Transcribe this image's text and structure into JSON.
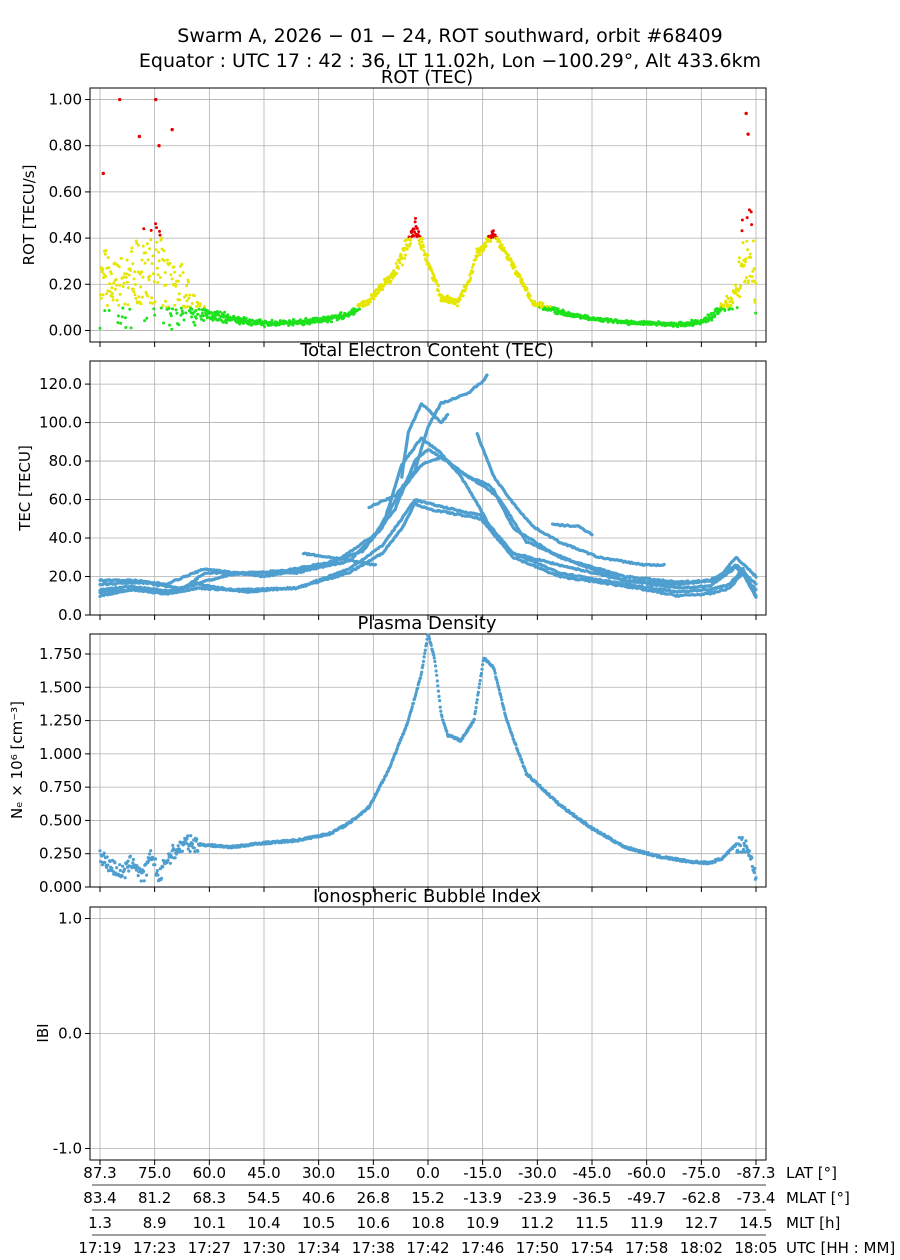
{
  "figure": {
    "title_line1": "Swarm A,  2026 − 01 − 24,  ROT southward,  orbit #68409",
    "title_line2": "Equator :  UTC 17 : 42 : 36,  LT 11.02h,  Lon  −100.29°,  Alt 433.6km"
  },
  "chart_data": [
    {
      "id": "rot",
      "type": "scatter",
      "title": "ROT (TEC)",
      "ylabel": "ROT [TECU/s]",
      "ylim": [
        -0.05,
        1.05
      ],
      "yticks": [
        0.0,
        0.2,
        0.4,
        0.6,
        0.8,
        1.0
      ],
      "ytick_labels": [
        "0.00",
        "0.20",
        "0.40",
        "0.60",
        "0.80",
        "1.00"
      ],
      "color_thresholds": {
        "green_below": 0.1,
        "yellow_below": 0.4,
        "red_above": 0.4
      },
      "colors": {
        "low": "#1de21d",
        "mid": "#e6e600",
        "high": "#e60000"
      },
      "envelope": {
        "t": [
          0.0,
          0.02,
          0.04,
          0.06,
          0.08,
          0.1,
          0.12,
          0.15,
          0.2,
          0.25,
          0.3,
          0.35,
          0.38,
          0.41,
          0.45,
          0.48,
          0.5,
          0.52,
          0.545,
          0.56,
          0.575,
          0.6,
          0.63,
          0.66,
          0.7,
          0.75,
          0.8,
          0.85,
          0.88,
          0.92,
          0.95,
          0.97,
          0.98,
          0.99,
          1.0
        ],
        "center": [
          0.2,
          0.18,
          0.16,
          0.24,
          0.26,
          0.22,
          0.16,
          0.08,
          0.05,
          0.03,
          0.035,
          0.05,
          0.07,
          0.13,
          0.25,
          0.45,
          0.3,
          0.14,
          0.12,
          0.2,
          0.33,
          0.42,
          0.28,
          0.12,
          0.08,
          0.05,
          0.035,
          0.03,
          0.025,
          0.04,
          0.1,
          0.15,
          0.3,
          0.4,
          0.15
        ],
        "spread": [
          0.2,
          0.2,
          0.2,
          0.22,
          0.3,
          0.25,
          0.18,
          0.05,
          0.02,
          0.015,
          0.015,
          0.015,
          0.02,
          0.02,
          0.03,
          0.06,
          0.03,
          0.02,
          0.02,
          0.02,
          0.03,
          0.02,
          0.02,
          0.015,
          0.015,
          0.01,
          0.01,
          0.01,
          0.01,
          0.015,
          0.03,
          0.06,
          0.25,
          0.28,
          0.12
        ]
      },
      "outliers": [
        {
          "t": 0.03,
          "y": 1.0
        },
        {
          "t": 0.085,
          "y": 1.0
        },
        {
          "t": 0.06,
          "y": 0.84
        },
        {
          "t": 0.11,
          "y": 0.87
        },
        {
          "t": 0.09,
          "y": 0.8
        },
        {
          "t": 0.005,
          "y": 0.68
        },
        {
          "t": 0.985,
          "y": 0.94
        },
        {
          "t": 0.988,
          "y": 0.85
        }
      ]
    },
    {
      "id": "tec",
      "type": "line",
      "title": "Total Electron Content (TEC)",
      "ylabel": "TEC [TECU]",
      "ylim": [
        0,
        132
      ],
      "yticks": [
        0,
        20,
        40,
        60,
        80,
        100,
        120
      ],
      "ytick_labels": [
        "0.0",
        "20.0",
        "40.0",
        "60.0",
        "80.0",
        "100.0",
        "120.0"
      ],
      "color": "#4e9fcf",
      "series": [
        {
          "name": "arc 1",
          "t": [
            0.0,
            0.05,
            0.1,
            0.15,
            0.2,
            0.3,
            0.38,
            0.43,
            0.46,
            0.48,
            0.5,
            0.55,
            0.58,
            0.63,
            0.7,
            0.8,
            0.88,
            0.93,
            0.96,
            0.98,
            1.0
          ],
          "y": [
            12,
            13,
            11,
            14,
            13,
            14,
            22,
            32,
            45,
            58,
            55,
            52,
            50,
            30,
            20,
            15,
            10,
            11,
            14,
            22,
            9
          ]
        },
        {
          "name": "arc 2",
          "t": [
            0.0,
            0.05,
            0.1,
            0.15,
            0.22,
            0.3,
            0.38,
            0.43,
            0.46,
            0.48,
            0.5,
            0.55,
            0.58,
            0.63,
            0.7,
            0.8,
            0.88,
            0.93,
            0.96,
            0.98,
            1.0
          ],
          "y": [
            13,
            15,
            12,
            16,
            12,
            14,
            24,
            36,
            50,
            60,
            58,
            54,
            52,
            32,
            22,
            16,
            12,
            13,
            16,
            24,
            10
          ]
        },
        {
          "name": "arc 3",
          "t": [
            0.0,
            0.06,
            0.12,
            0.16,
            0.22,
            0.3,
            0.38,
            0.43,
            0.46,
            0.49,
            0.52,
            0.55,
            0.58,
            0.6,
            0.63,
            0.7,
            0.8,
            0.88,
            0.93,
            0.97,
            1.0
          ],
          "y": [
            10,
            14,
            12,
            22,
            22,
            22,
            28,
            45,
            78,
            92,
            84,
            72,
            55,
            42,
            32,
            26,
            18,
            14,
            15,
            25,
            13
          ]
        },
        {
          "name": "arc 4",
          "t": [
            0.0,
            0.06,
            0.12,
            0.2,
            0.28,
            0.36,
            0.42,
            0.46,
            0.49,
            0.52,
            0.56,
            0.59,
            0.61,
            0.65,
            0.72,
            0.8,
            0.88,
            0.93,
            0.97,
            1.0
          ],
          "y": [
            16,
            17,
            14,
            21,
            23,
            28,
            42,
            65,
            78,
            82,
            72,
            66,
            60,
            38,
            28,
            20,
            17,
            18,
            26,
            16
          ]
        },
        {
          "name": "arc 5",
          "t": [
            0.0,
            0.05,
            0.1,
            0.16,
            0.25,
            0.33,
            0.4,
            0.45,
            0.48,
            0.5,
            0.53,
            0.56,
            0.59,
            0.6,
            0.63,
            0.7,
            0.8,
            0.88,
            0.94,
            0.97,
            1.0
          ],
          "y": [
            18,
            18,
            16,
            24,
            20,
            25,
            33,
            55,
            80,
            86,
            80,
            72,
            68,
            65,
            45,
            30,
            18,
            16,
            18,
            30,
            20
          ]
        },
        {
          "name": "arc 6",
          "t": [
            0.41,
            0.45,
            0.48,
            0.5,
            0.52,
            0.56,
            0.585,
            0.59
          ],
          "y": [
            56,
            62,
            75,
            98,
            110,
            115,
            122,
            125
          ]
        },
        {
          "name": "arc 7",
          "t": [
            0.46,
            0.47,
            0.49,
            0.52,
            0.53
          ],
          "y": [
            72,
            95,
            110,
            100,
            104
          ]
        },
        {
          "name": "arc 8",
          "t": [
            0.575,
            0.6,
            0.63,
            0.66,
            0.7,
            0.76,
            0.83,
            0.86
          ],
          "y": [
            94,
            72,
            58,
            46,
            38,
            30,
            26,
            26
          ]
        },
        {
          "name": "arc 9",
          "t": [
            0.69,
            0.73,
            0.75
          ],
          "y": [
            47,
            46,
            42
          ]
        },
        {
          "name": "arc 10",
          "t": [
            0.31,
            0.37,
            0.42
          ],
          "y": [
            32,
            29,
            26
          ]
        }
      ]
    },
    {
      "id": "ne",
      "type": "scatter",
      "title": "Plasma Density",
      "ylabel": "Nₑ × 10⁶ [cm⁻³]",
      "ylim": [
        0,
        1.9
      ],
      "yticks": [
        0.0,
        0.25,
        0.5,
        0.75,
        1.0,
        1.25,
        1.5,
        1.75
      ],
      "ytick_labels": [
        "0.000",
        "0.250",
        "0.500",
        "0.750",
        "1.000",
        "1.250",
        "1.500",
        "1.750"
      ],
      "color": "#4e9fcf",
      "t": [
        0.0,
        0.01,
        0.02,
        0.035,
        0.05,
        0.065,
        0.08,
        0.09,
        0.1,
        0.11,
        0.13,
        0.15,
        0.2,
        0.25,
        0.3,
        0.35,
        0.38,
        0.41,
        0.44,
        0.47,
        0.49,
        0.5,
        0.51,
        0.52,
        0.53,
        0.55,
        0.57,
        0.585,
        0.6,
        0.62,
        0.65,
        0.7,
        0.75,
        0.8,
        0.85,
        0.9,
        0.93,
        0.95,
        0.97,
        0.985,
        1.0
      ],
      "y": [
        0.25,
        0.18,
        0.15,
        0.1,
        0.2,
        0.07,
        0.25,
        0.05,
        0.2,
        0.25,
        0.33,
        0.32,
        0.3,
        0.33,
        0.35,
        0.4,
        0.48,
        0.6,
        0.88,
        1.25,
        1.6,
        1.9,
        1.72,
        1.3,
        1.14,
        1.1,
        1.25,
        1.72,
        1.65,
        1.25,
        0.85,
        0.62,
        0.44,
        0.3,
        0.23,
        0.19,
        0.18,
        0.22,
        0.32,
        0.32,
        0.1
      ]
    },
    {
      "id": "ibi",
      "type": "scatter",
      "title": "Ionospheric Bubble Index",
      "ylabel": "IBI",
      "ylim": [
        -1.1,
        1.1
      ],
      "yticks": [
        -1.0,
        0.0,
        1.0
      ],
      "ytick_labels": [
        "-1.0",
        "0.0",
        "1.0"
      ],
      "t": [],
      "y": []
    }
  ],
  "x_axis": {
    "tick_positions": [
      0.0,
      0.0833,
      0.1667,
      0.25,
      0.3333,
      0.4167,
      0.5,
      0.5833,
      0.6667,
      0.75,
      0.8333,
      0.9167,
      1.0
    ],
    "rows": [
      {
        "label": "LAT [°]",
        "values": [
          "87.3",
          "75.0",
          "60.0",
          "45.0",
          "30.0",
          "15.0",
          "0.0",
          "-15.0",
          "-30.0",
          "-45.0",
          "-60.0",
          "-75.0",
          "-87.3"
        ]
      },
      {
        "label": "MLAT [°]",
        "values": [
          "83.4",
          "81.2",
          "68.3",
          "54.5",
          "40.6",
          "26.8",
          "15.2",
          "-13.9",
          "-23.9",
          "-36.5",
          "-49.7",
          "-62.8",
          "-73.4"
        ]
      },
      {
        "label": "MLT [h]",
        "values": [
          "1.3",
          "8.9",
          "10.1",
          "10.4",
          "10.5",
          "10.6",
          "10.8",
          "10.9",
          "11.2",
          "11.5",
          "11.9",
          "12.7",
          "14.5"
        ]
      },
      {
        "label": "UTC [HH : MM]",
        "values": [
          "17:19",
          "17:23",
          "17:27",
          "17:30",
          "17:34",
          "17:38",
          "17:42",
          "17:46",
          "17:50",
          "17:54",
          "17:58",
          "18:02",
          "18:05"
        ]
      }
    ]
  }
}
